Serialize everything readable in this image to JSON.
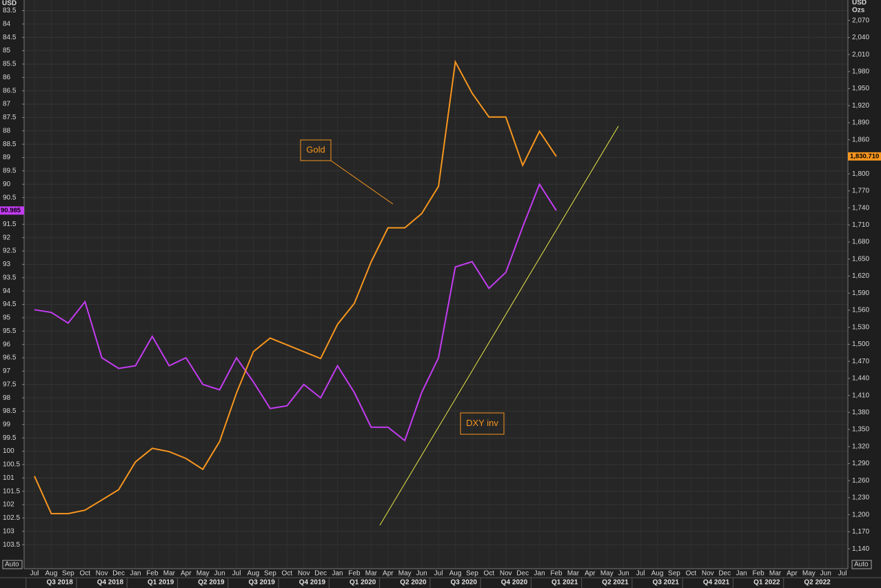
{
  "chart_data": {
    "type": "line",
    "ylabel": "USD",
    "y2label": [
      "USD",
      "Ozs"
    ],
    "buttons": [
      "Auto",
      "Auto"
    ],
    "annotations": [
      "Gold",
      "DXY inv"
    ],
    "invert_y": true,
    "ylim": [
      83.1,
      104.4
    ],
    "yticks": [
      83.5,
      84,
      84.5,
      85,
      85.5,
      86,
      86.5,
      87,
      87.5,
      88,
      88.5,
      89,
      89.5,
      90,
      90.5,
      91,
      91.5,
      92,
      92.5,
      93,
      93.5,
      94,
      94.5,
      95,
      95.5,
      96,
      96.5,
      97,
      97.5,
      98,
      98.5,
      99,
      99.5,
      100,
      100.5,
      101,
      101.5,
      102,
      102.5,
      103,
      103.5
    ],
    "y2lim": [
      1105,
      2106
    ],
    "y2ticks": [
      {
        "value": 1140,
        "label": "1,140"
      },
      {
        "value": 1170,
        "label": "1,170"
      },
      {
        "value": 1200,
        "label": "1,200"
      },
      {
        "value": 1230,
        "label": "1,230"
      },
      {
        "value": 1260,
        "label": "1,260"
      },
      {
        "value": 1290,
        "label": "1,290"
      },
      {
        "value": 1320,
        "label": "1,320"
      },
      {
        "value": 1350,
        "label": "1,350"
      },
      {
        "value": 1380,
        "label": "1,380"
      },
      {
        "value": 1410,
        "label": "1,410"
      },
      {
        "value": 1440,
        "label": "1,440"
      },
      {
        "value": 1470,
        "label": "1,470"
      },
      {
        "value": 1500,
        "label": "1,500"
      },
      {
        "value": 1530,
        "label": "1,530"
      },
      {
        "value": 1560,
        "label": "1,560"
      },
      {
        "value": 1590,
        "label": "1,590"
      },
      {
        "value": 1620,
        "label": "1,620"
      },
      {
        "value": 1650,
        "label": "1,650"
      },
      {
        "value": 1680,
        "label": "1,680"
      },
      {
        "value": 1710,
        "label": "1,710"
      },
      {
        "value": 1740,
        "label": "1,740"
      },
      {
        "value": 1770,
        "label": "1,770"
      },
      {
        "value": 1800,
        "label": "1,800"
      },
      {
        "value": 1830,
        "label": "1,830"
      },
      {
        "value": 1860,
        "label": "1,860"
      },
      {
        "value": 1890,
        "label": "1,890"
      },
      {
        "value": 1920,
        "label": "1,920"
      },
      {
        "value": 1950,
        "label": "1,950"
      },
      {
        "value": 1980,
        "label": "1,980"
      },
      {
        "value": 2010,
        "label": "2,010"
      },
      {
        "value": 2040,
        "label": "2,040"
      },
      {
        "value": 2070,
        "label": "2,070"
      }
    ],
    "xticks": [
      {
        "value": "2018-07",
        "label": "Jul"
      },
      {
        "value": "2018-08",
        "label": "Aug"
      },
      {
        "value": "2018-09",
        "label": "Sep"
      },
      {
        "value": "2018-10",
        "label": "Oct"
      },
      {
        "value": "2018-11",
        "label": "Nov"
      },
      {
        "value": "2018-12",
        "label": "Dec"
      },
      {
        "value": "2019-01",
        "label": "Jan"
      },
      {
        "value": "2019-02",
        "label": "Feb"
      },
      {
        "value": "2019-03",
        "label": "Mar"
      },
      {
        "value": "2019-04",
        "label": "Apr"
      },
      {
        "value": "2019-05",
        "label": "May"
      },
      {
        "value": "2019-06",
        "label": "Jun"
      },
      {
        "value": "2019-07",
        "label": "Jul"
      },
      {
        "value": "2019-08",
        "label": "Aug"
      },
      {
        "value": "2019-09",
        "label": "Sep"
      },
      {
        "value": "2019-10",
        "label": "Oct"
      },
      {
        "value": "2019-11",
        "label": "Nov"
      },
      {
        "value": "2019-12",
        "label": "Dec"
      },
      {
        "value": "2020-01",
        "label": "Jan"
      },
      {
        "value": "2020-02",
        "label": "Feb"
      },
      {
        "value": "2020-03",
        "label": "Mar"
      },
      {
        "value": "2020-04",
        "label": "Apr"
      },
      {
        "value": "2020-05",
        "label": "May"
      },
      {
        "value": "2020-06",
        "label": "Jun"
      },
      {
        "value": "2020-07",
        "label": "Jul"
      },
      {
        "value": "2020-08",
        "label": "Aug"
      },
      {
        "value": "2020-09",
        "label": "Sep"
      },
      {
        "value": "2020-10",
        "label": "Oct"
      },
      {
        "value": "2020-11",
        "label": "Nov"
      },
      {
        "value": "2020-12",
        "label": "Dec"
      },
      {
        "value": "2021-01",
        "label": "Jan"
      },
      {
        "value": "2021-02",
        "label": "Feb"
      },
      {
        "value": "2021-03",
        "label": "Mar"
      },
      {
        "value": "2021-04",
        "label": "Apr"
      },
      {
        "value": "2021-05",
        "label": "May"
      },
      {
        "value": "2021-06",
        "label": "Jun"
      },
      {
        "value": "2021-07",
        "label": "Jul"
      },
      {
        "value": "2021-08",
        "label": "Aug"
      },
      {
        "value": "2021-09",
        "label": "Sep"
      },
      {
        "value": "2021-10",
        "label": "Oct"
      },
      {
        "value": "2021-11",
        "label": "Nov"
      },
      {
        "value": "2021-12",
        "label": "Dec"
      },
      {
        "value": "2022-01",
        "label": "Jan"
      },
      {
        "value": "2022-02",
        "label": "Feb"
      },
      {
        "value": "2022-03",
        "label": "Mar"
      },
      {
        "value": "2022-04",
        "label": "Apr"
      },
      {
        "value": "2022-05",
        "label": "May"
      },
      {
        "value": "2022-06",
        "label": "Jun"
      },
      {
        "value": "2022-07",
        "label": "Jul"
      }
    ],
    "quarters": [
      {
        "value": "2018-07",
        "label": "Q3 2018"
      },
      {
        "value": "2018-10",
        "label": "Q4 2018"
      },
      {
        "value": "2019-01",
        "label": "Q1 2019"
      },
      {
        "value": "2019-04",
        "label": "Q2 2019"
      },
      {
        "value": "2019-07",
        "label": "Q3 2019"
      },
      {
        "value": "2019-10",
        "label": "Q4 2019"
      },
      {
        "value": "2020-01",
        "label": "Q1 2020"
      },
      {
        "value": "2020-04",
        "label": "Q2 2020"
      },
      {
        "value": "2020-07",
        "label": "Q3 2020"
      },
      {
        "value": "2020-10",
        "label": "Q4 2020"
      },
      {
        "value": "2021-01",
        "label": "Q1 2021"
      },
      {
        "value": "2021-04",
        "label": "Q2 2021"
      },
      {
        "value": "2021-07",
        "label": "Q3 2021"
      },
      {
        "value": "2021-10",
        "label": "Q4 2021"
      },
      {
        "value": "2022-01",
        "label": "Q1 2022"
      },
      {
        "value": "2022-04",
        "label": "Q2 2022"
      }
    ],
    "x": [
      "2018-07",
      "2018-08",
      "2018-09",
      "2018-10",
      "2018-11",
      "2018-12",
      "2019-01",
      "2019-02",
      "2019-03",
      "2019-04",
      "2019-05",
      "2019-06",
      "2019-07",
      "2019-08",
      "2019-09",
      "2019-10",
      "2019-11",
      "2019-12",
      "2020-01",
      "2020-02",
      "2020-03",
      "2020-04",
      "2020-05",
      "2020-06",
      "2020-07",
      "2020-08",
      "2020-09",
      "2020-10",
      "2020-11",
      "2020-12",
      "2021-01",
      "2021-02"
    ],
    "series": [
      {
        "name": "DXY inv",
        "color": "#c43cf2",
        "last_value_label": "90.985",
        "values": [
          94.7,
          94.8,
          95.2,
          94.4,
          96.5,
          96.9,
          96.8,
          95.7,
          96.8,
          96.5,
          97.5,
          97.7,
          96.5,
          97.4,
          98.4,
          98.3,
          97.5,
          98.0,
          96.8,
          97.8,
          99.1,
          99.1,
          99.6,
          97.8,
          96.5,
          93.1,
          92.9,
          93.9,
          93.3,
          91.6,
          90.0,
          90.985
        ]
      },
      {
        "name": "Gold",
        "color": "#f7961e",
        "axis": "y2",
        "last_value_label": "1,830.710",
        "values": [
          1268,
          1202,
          1202,
          1208,
          1226,
          1244,
          1293,
          1317,
          1311,
          1299,
          1280,
          1329,
          1414,
          1487,
          1511,
          1499,
          1487,
          1475,
          1535,
          1572,
          1645,
          1705,
          1705,
          1730,
          1778,
          1997,
          1942,
          1900,
          1900,
          1815,
          1875,
          1830.71
        ]
      }
    ]
  }
}
